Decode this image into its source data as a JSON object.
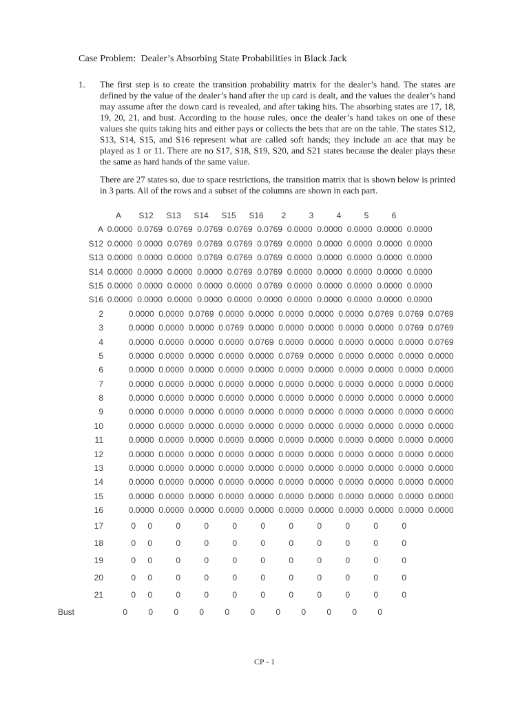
{
  "document": {
    "title": "Case Problem:  Dealer’s Absorbing State Probabilities in Black Jack",
    "item_number": "1.",
    "paragraph1": "The first step is to create the transition probability matrix for the dealer’s hand.  The states are defined by the value of the dealer’s hand after the up card is dealt, and the values the dealer’s hand may assume after the down card is revealed, and after taking hits.  The absorbing states are 17, 18, 19, 20, 21, and bust.  According to the house rules, once the dealer’s hand takes on one of these values she quits taking hits and either pays or collects the bets that are on the table.  The states S12, S13, S14, S15, and S16 represent what are called soft hands; they include an ace that may be played as 1 or 11.  There are no S17, S18, S19, S20, and S21 states because the dealer plays these the same as hard hands of the same value.",
    "paragraph2": "There are 27 states so, due to space restrictions, the transition matrix that is shown below is printed in 3 parts.  All of the rows and a subset of the columns are shown in each part.",
    "footer": "CP - 1"
  },
  "matrix": {
    "columns": [
      "A",
      "S12",
      "S13",
      "S14",
      "S15",
      "S16",
      "2",
      "3",
      "4",
      "5",
      "6"
    ],
    "rows": [
      {
        "label": "A",
        "group": "a",
        "values": [
          "0.0000",
          "0.0769",
          "0.0769",
          "0.0769",
          "0.0769",
          "0.0769",
          "0.0000",
          "0.0000",
          "0.0000",
          "0.0000",
          "0.0000"
        ]
      },
      {
        "label": "S12",
        "group": "a",
        "values": [
          "0.0000",
          "0.0000",
          "0.0769",
          "0.0769",
          "0.0769",
          "0.0769",
          "0.0000",
          "0.0000",
          "0.0000",
          "0.0000",
          "0.0000"
        ]
      },
      {
        "label": "S13",
        "group": "a",
        "values": [
          "0.0000",
          "0.0000",
          "0.0000",
          "0.0769",
          "0.0769",
          "0.0769",
          "0.0000",
          "0.0000",
          "0.0000",
          "0.0000",
          "0.0000"
        ]
      },
      {
        "label": "S14",
        "group": "a",
        "values": [
          "0.0000",
          "0.0000",
          "0.0000",
          "0.0000",
          "0.0769",
          "0.0769",
          "0.0000",
          "0.0000",
          "0.0000",
          "0.0000",
          "0.0000"
        ]
      },
      {
        "label": "S15",
        "group": "a",
        "values": [
          "0.0000",
          "0.0000",
          "0.0000",
          "0.0000",
          "0.0000",
          "0.0769",
          "0.0000",
          "0.0000",
          "0.0000",
          "0.0000",
          "0.0000"
        ]
      },
      {
        "label": "S16",
        "group": "a",
        "values": [
          "0.0000",
          "0.0000",
          "0.0000",
          "0.0000",
          "0.0000",
          "0.0000",
          "0.0000",
          "0.0000",
          "0.0000",
          "0.0000",
          "0.0000"
        ]
      },
      {
        "label": "2",
        "group": "b",
        "values": [
          "0.0000",
          "0.0000",
          "0.0769",
          "0.0000",
          "0.0000",
          "0.0000",
          "0.0000",
          "0.0000",
          "0.0769",
          "0.0769",
          "0.0769"
        ]
      },
      {
        "label": "3",
        "group": "b",
        "values": [
          "0.0000",
          "0.0000",
          "0.0000",
          "0.0769",
          "0.0000",
          "0.0000",
          "0.0000",
          "0.0000",
          "0.0000",
          "0.0769",
          "0.0769"
        ]
      },
      {
        "label": "4",
        "group": "b",
        "values": [
          "0.0000",
          "0.0000",
          "0.0000",
          "0.0000",
          "0.0769",
          "0.0000",
          "0.0000",
          "0.0000",
          "0.0000",
          "0.0000",
          "0.0769"
        ]
      },
      {
        "label": "5",
        "group": "b",
        "values": [
          "0.0000",
          "0.0000",
          "0.0000",
          "0.0000",
          "0.0000",
          "0.0769",
          "0.0000",
          "0.0000",
          "0.0000",
          "0.0000",
          "0.0000"
        ]
      },
      {
        "label": "6",
        "group": "b",
        "values": [
          "0.0000",
          "0.0000",
          "0.0000",
          "0.0000",
          "0.0000",
          "0.0000",
          "0.0000",
          "0.0000",
          "0.0000",
          "0.0000",
          "0.0000"
        ]
      },
      {
        "label": "7",
        "group": "b",
        "values": [
          "0.0000",
          "0.0000",
          "0.0000",
          "0.0000",
          "0.0000",
          "0.0000",
          "0.0000",
          "0.0000",
          "0.0000",
          "0.0000",
          "0.0000"
        ]
      },
      {
        "label": "8",
        "group": "b",
        "values": [
          "0.0000",
          "0.0000",
          "0.0000",
          "0.0000",
          "0.0000",
          "0.0000",
          "0.0000",
          "0.0000",
          "0.0000",
          "0.0000",
          "0.0000"
        ]
      },
      {
        "label": "9",
        "group": "b",
        "values": [
          "0.0000",
          "0.0000",
          "0.0000",
          "0.0000",
          "0.0000",
          "0.0000",
          "0.0000",
          "0.0000",
          "0.0000",
          "0.0000",
          "0.0000"
        ]
      },
      {
        "label": "10",
        "group": "b",
        "values": [
          "0.0000",
          "0.0000",
          "0.0000",
          "0.0000",
          "0.0000",
          "0.0000",
          "0.0000",
          "0.0000",
          "0.0000",
          "0.0000",
          "0.0000"
        ]
      },
      {
        "label": "11",
        "group": "b",
        "values": [
          "0.0000",
          "0.0000",
          "0.0000",
          "0.0000",
          "0.0000",
          "0.0000",
          "0.0000",
          "0.0000",
          "0.0000",
          "0.0000",
          "0.0000"
        ]
      },
      {
        "label": "12",
        "group": "b",
        "values": [
          "0.0000",
          "0.0000",
          "0.0000",
          "0.0000",
          "0.0000",
          "0.0000",
          "0.0000",
          "0.0000",
          "0.0000",
          "0.0000",
          "0.0000"
        ]
      },
      {
        "label": "13",
        "group": "b",
        "values": [
          "0.0000",
          "0.0000",
          "0.0000",
          "0.0000",
          "0.0000",
          "0.0000",
          "0.0000",
          "0.0000",
          "0.0000",
          "0.0000",
          "0.0000"
        ]
      },
      {
        "label": "14",
        "group": "b",
        "values": [
          "0.0000",
          "0.0000",
          "0.0000",
          "0.0000",
          "0.0000",
          "0.0000",
          "0.0000",
          "0.0000",
          "0.0000",
          "0.0000",
          "0.0000"
        ]
      },
      {
        "label": "15",
        "group": "b",
        "values": [
          "0.0000",
          "0.0000",
          "0.0000",
          "0.0000",
          "0.0000",
          "0.0000",
          "0.0000",
          "0.0000",
          "0.0000",
          "0.0000",
          "0.0000"
        ]
      },
      {
        "label": "16",
        "group": "b",
        "values": [
          "0.0000",
          "0.0000",
          "0.0000",
          "0.0000",
          "0.0000",
          "0.0000",
          "0.0000",
          "0.0000",
          "0.0000",
          "0.0000",
          "0.0000"
        ]
      },
      {
        "label": "17",
        "group": "c",
        "values": [
          "0",
          "0",
          "0",
          "0",
          "0",
          "0",
          "0",
          "0",
          "0",
          "0",
          "0"
        ]
      },
      {
        "label": "18",
        "group": "c",
        "values": [
          "0",
          "0",
          "0",
          "0",
          "0",
          "0",
          "0",
          "0",
          "0",
          "0",
          "0"
        ]
      },
      {
        "label": "19",
        "group": "c",
        "values": [
          "0",
          "0",
          "0",
          "0",
          "0",
          "0",
          "0",
          "0",
          "0",
          "0",
          "0"
        ]
      },
      {
        "label": "20",
        "group": "c",
        "values": [
          "0",
          "0",
          "0",
          "0",
          "0",
          "0",
          "0",
          "0",
          "0",
          "0",
          "0"
        ]
      },
      {
        "label": "21",
        "group": "c",
        "values": [
          "0",
          "0",
          "0",
          "0",
          "0",
          "0",
          "0",
          "0",
          "0",
          "0",
          "0"
        ]
      },
      {
        "label": "Bust",
        "group": "d",
        "values": [
          "0",
          "0",
          "0",
          "0",
          "0",
          "0",
          "0",
          "0",
          "0",
          "0",
          "0"
        ]
      }
    ]
  }
}
